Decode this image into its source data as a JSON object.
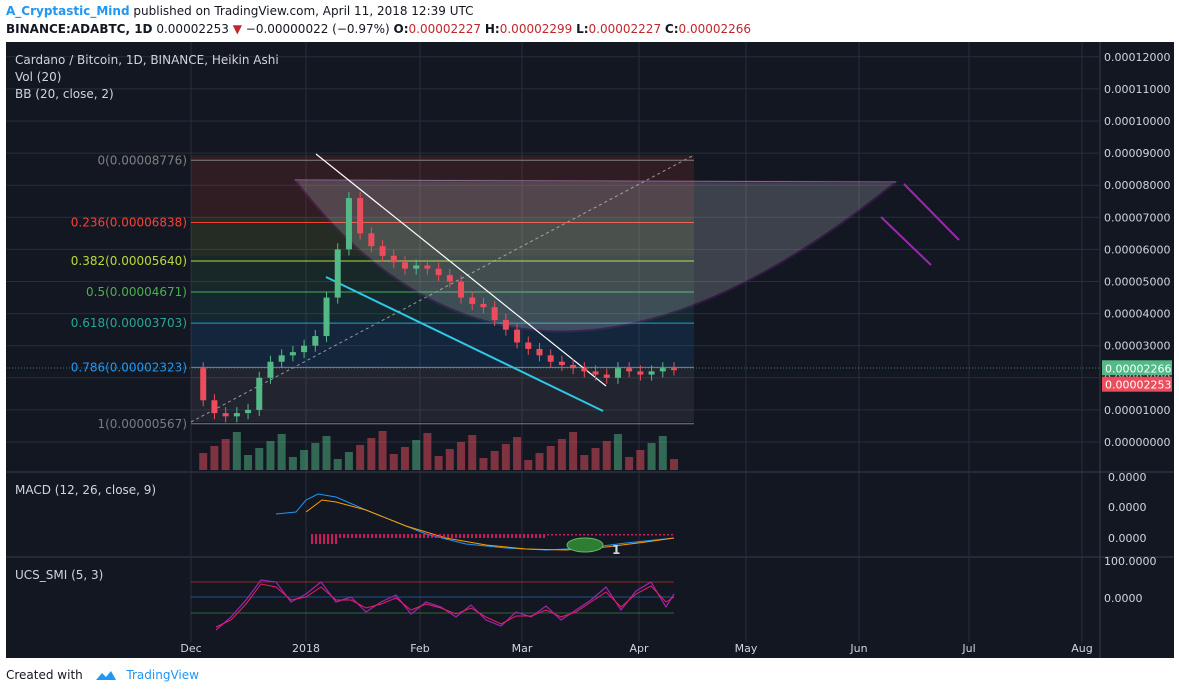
{
  "header": {
    "author": "A_Cryptastic_Mind",
    "published": "published on TradingView.com, April 11, 2018 12:39 UTC",
    "symbol": "BINANCE:ADABTC, 1D",
    "last": "0.00002253",
    "change": "−0.00000022 (−0.97%)",
    "o_label": "O:",
    "o_val": "0.00002227",
    "h_label": "H:",
    "h_val": "0.00002299",
    "l_label": "L:",
    "l_val": "0.00002227",
    "c_label": "C:",
    "c_val": "0.00002266"
  },
  "legend": {
    "title": "Cardano / Bitcoin, 1D, BINANCE, Heikin Ashi",
    "vol": "Vol (20)",
    "bb": "BB (20, close, 2)"
  },
  "macd_label": "MACD (12, 26, close, 9)",
  "smi_label": "UCS_SMI (5, 3)",
  "annotation_label": "1",
  "footer": {
    "created": "Created with",
    "brand": "TradingView"
  },
  "colors": {
    "bg": "#131722",
    "up": "#53b987",
    "down": "#eb4d5c",
    "bowl": "#9c27b0",
    "cyan": "#2ec7e6",
    "white": "#ffffff",
    "fib0": "#808080",
    "fib236": "#f44336",
    "fib382": "#b5dc3a",
    "fib50": "#4caf50",
    "fib618": "#26a69a",
    "fib786": "#2196f3",
    "fib1": "#787b86"
  },
  "chart_data": [
    {
      "type": "candlestick",
      "title": "Cardano / Bitcoin, 1D, BINANCE, Heikin Ashi",
      "ylim": [
        0,
        0.00012
      ],
      "yticks": [
        "0.00012000",
        "0.00011000",
        "0.00010000",
        "0.00009000",
        "0.00008000",
        "0.00007000",
        "0.00006000",
        "0.00005000",
        "0.00004000",
        "0.00003000",
        "0.00002000",
        "0.00001000",
        "0.00000000"
      ],
      "xticks": [
        "Dec",
        "2018",
        "Feb",
        "Mar",
        "Apr",
        "May",
        "Jun",
        "Jul",
        "Aug"
      ],
      "price_labels": {
        "close": "0.00002266",
        "last": "0.00002253"
      },
      "fibonacci": [
        {
          "label": "0(0.00008776)",
          "level": 0,
          "price": 8.776e-05
        },
        {
          "label": "0.236(0.00006838)",
          "level": 0.236,
          "price": 6.838e-05
        },
        {
          "label": "0.382(0.00005640)",
          "level": 0.382,
          "price": 5.64e-05
        },
        {
          "label": "0.5(0.00004671)",
          "level": 0.5,
          "price": 4.671e-05
        },
        {
          "label": "0.618(0.00003703)",
          "level": 0.618,
          "price": 3.703e-05
        },
        {
          "label": "0.786(0.00002323)",
          "level": 0.786,
          "price": 2.323e-05
        },
        {
          "label": "1(0.00000567)",
          "level": 1,
          "price": 5.67e-06
        }
      ],
      "series": [
        {
          "name": "Price",
          "values": [
            2.3e-05,
            1.3e-05,
            9e-06,
            8e-06,
            9e-06,
            1e-05,
            2e-05,
            2.5e-05,
            2.7e-05,
            2.8e-05,
            3e-05,
            3.3e-05,
            4.5e-05,
            6e-05,
            7.6e-05,
            6.5e-05,
            6.1e-05,
            5.8e-05,
            5.6e-05,
            5.4e-05,
            5.5e-05,
            5.4e-05,
            5.2e-05,
            5e-05,
            4.5e-05,
            4.3e-05,
            4.2e-05,
            3.8e-05,
            3.5e-05,
            3.1e-05,
            2.9e-05,
            2.7e-05,
            2.5e-05,
            2.4e-05,
            2.3e-05,
            2.2e-05,
            2.1e-05,
            2e-05,
            2.3e-05,
            2.2e-05,
            2.1e-05,
            2.2e-05,
            2.3e-05,
            2.26e-05
          ]
        }
      ]
    },
    {
      "type": "line",
      "title": "MACD (12, 26, close, 9)",
      "yticks": [
        "0.0000",
        "0.0000",
        "0.0000"
      ]
    },
    {
      "type": "line",
      "title": "UCS_SMI (5, 3)",
      "yticks": [
        "100.0000",
        "0.0000"
      ]
    }
  ]
}
